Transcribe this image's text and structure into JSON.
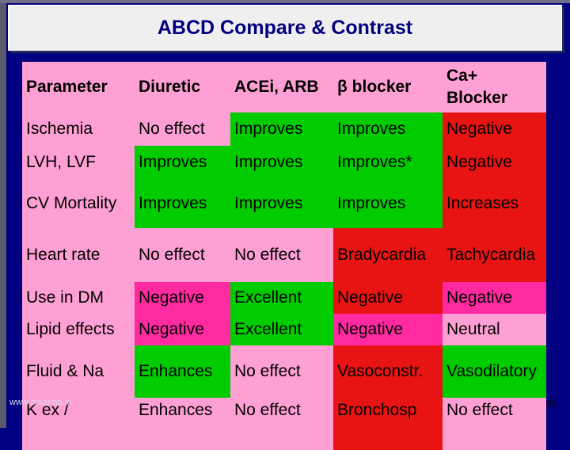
{
  "title": "ABCD Compare & Contrast",
  "colors": {
    "background": "#000080",
    "light_pink": "#ffa0d4",
    "pink": "#ff2aa0",
    "red": "#e81414",
    "green": "#00cc00"
  },
  "table": {
    "header": [
      "Parameter",
      "Diuretic",
      "ACEi, ARB",
      "β blocker",
      "Ca+ Blocker"
    ],
    "rows": [
      {
        "cells": [
          "Ischemia",
          "No effect",
          "Improves",
          "Improves",
          "Negative"
        ],
        "colors": [
          "light_pink",
          "light_pink",
          "green",
          "green",
          "red"
        ]
      },
      {
        "cells": [
          "LVH, LVF",
          "Improves",
          "Improves",
          "Improves*",
          "Negative"
        ],
        "colors": [
          "light_pink",
          "green",
          "green",
          "green",
          "red"
        ]
      },
      {
        "cells": [
          "CV Mortality",
          "Improves",
          "Improves",
          "Improves",
          "Increases"
        ],
        "colors": [
          "light_pink",
          "green",
          "green",
          "green",
          "red"
        ]
      },
      {
        "cells": [
          "Heart rate",
          "No effect",
          "No effect",
          "Bradycardia",
          "Tachycardia"
        ],
        "colors": [
          "light_pink",
          "light_pink",
          "light_pink",
          "red",
          "red"
        ]
      },
      {
        "cells": [
          "Use in DM",
          "Negative",
          "Excellent",
          "Negative",
          "Negative"
        ],
        "colors": [
          "light_pink",
          "pink",
          "green",
          "red",
          "pink"
        ]
      },
      {
        "cells": [
          "Lipid effects",
          "Negative",
          "Excellent",
          "Negative",
          "Neutral"
        ],
        "colors": [
          "light_pink",
          "pink",
          "green",
          "pink",
          "light_pink"
        ]
      },
      {
        "cells": [
          "Fluid & Na",
          "Enhances",
          "No effect",
          "Vasoconstr.",
          "Vasodilatory"
        ],
        "colors": [
          "light_pink",
          "green",
          "light_pink",
          "red",
          "green"
        ]
      },
      {
        "cells": [
          "K ex /",
          "Enhances",
          "No effect",
          "Bronchosp",
          "No effect"
        ],
        "colors": [
          "light_pink",
          "light_pink",
          "light_pink",
          "red",
          "light_pink"
        ]
      }
    ]
  },
  "footer": {
    "url": "www.drsarma.in",
    "page_number": "92"
  }
}
